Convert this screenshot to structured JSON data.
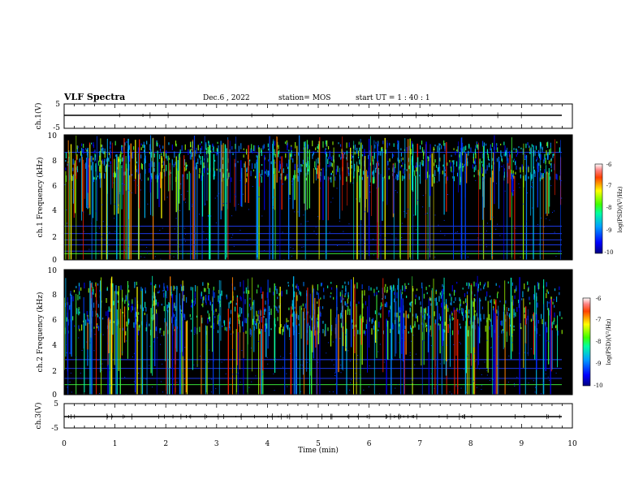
{
  "header": {
    "title": "VLF Spectra",
    "date": "Dec.6 , 2022",
    "station": "station= MOS",
    "start": "start  UT  =    1 : 40 : 1"
  },
  "chart_data": [
    {
      "type": "line",
      "name": "ch1-waveform",
      "ylabel": "ch.1(V)",
      "ylim": [
        -5,
        5
      ],
      "yticks": [
        "5",
        "-5"
      ],
      "xlim": [
        0,
        10
      ],
      "series": [
        {
          "x": [
            0,
            9.8
          ],
          "y": [
            0,
            0
          ]
        }
      ]
    },
    {
      "type": "heatmap",
      "name": "ch1-spectrogram",
      "ylabel": "ch.1 Frequency (kHz)",
      "ylim": [
        0,
        10
      ],
      "yticks": [
        "0",
        "2",
        "4",
        "6",
        "8",
        "10"
      ],
      "xlim": [
        0,
        10
      ],
      "colorbar": {
        "label": "log(PSD)(V²/Hz)",
        "ticks": [
          "-6",
          "-7",
          "-8",
          "-9",
          "-10"
        ],
        "range": [
          -10,
          -6
        ]
      },
      "bright_band_khz": [
        6.5,
        9.5
      ],
      "steady_lines_khz": [
        0.5,
        0.7,
        1.2,
        1.6,
        2.1,
        2.7,
        8.6
      ]
    },
    {
      "type": "heatmap",
      "name": "ch2-spectrogram",
      "ylabel": "ch.2 Frequency (kHz)",
      "ylim": [
        0,
        10
      ],
      "yticks": [
        "0",
        "2",
        "4",
        "6",
        "8",
        "10"
      ],
      "xlim": [
        0,
        10
      ],
      "colorbar": {
        "label": "log(PSD)(V²/Hz)",
        "ticks": [
          "-6",
          "-7",
          "-8",
          "-9",
          "-10"
        ],
        "range": [
          -10,
          -6
        ]
      },
      "bright_band_khz": [
        5.0,
        9.0
      ],
      "steady_lines_khz": [
        0.8,
        1.3,
        2.1,
        2.8
      ]
    },
    {
      "type": "line",
      "name": "ch3-waveform",
      "ylabel": "ch.3(V)",
      "ylim": [
        -5,
        5
      ],
      "yticks": [
        "5",
        "-5"
      ],
      "xlim": [
        0,
        10
      ],
      "xlabel": "Time  (min)",
      "xticks": [
        "0",
        "1",
        "2",
        "3",
        "4",
        "5",
        "6",
        "7",
        "8",
        "9",
        "10"
      ],
      "series": [
        {
          "x": [
            0,
            9.8
          ],
          "y": [
            0,
            0
          ]
        }
      ]
    }
  ]
}
